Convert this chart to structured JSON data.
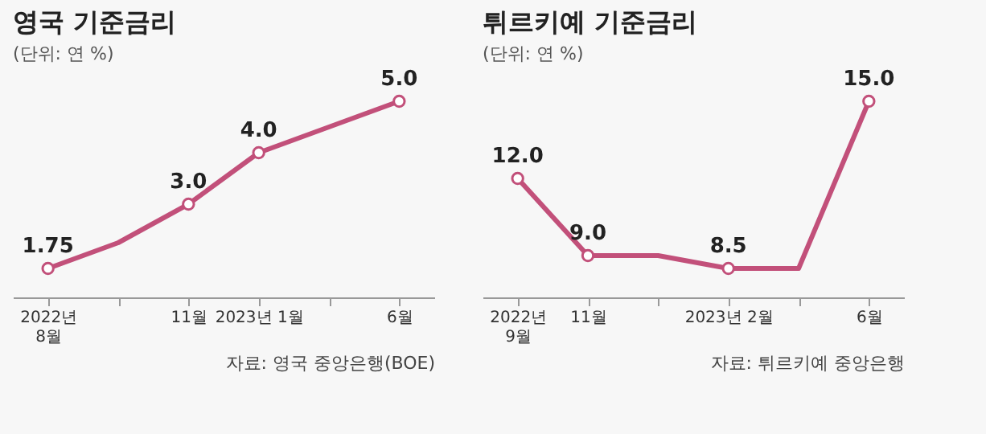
{
  "chart_data": [
    {
      "type": "line",
      "title": "영국 기준금리",
      "subtitle": "(단위: 연 %)",
      "categories": [
        "2022년\n8월",
        null,
        "11월",
        "2023년 1월",
        null,
        "6월"
      ],
      "values": [
        1.75,
        2.25,
        3.0,
        4.0,
        4.5,
        5.0
      ],
      "value_labels": [
        "1.75",
        null,
        "3.0",
        "4.0",
        null,
        "5.0"
      ],
      "color": "#c2507a",
      "marker": "circle",
      "annotations": [
        "자료: 영국 중앙은행(BOE)"
      ]
    },
    {
      "type": "line",
      "title": "튀르키예 기준금리",
      "subtitle": "(단위: 연 %)",
      "categories": [
        "2022년\n9월",
        "11월",
        null,
        "2023년 2월",
        null,
        "6월"
      ],
      "values": [
        12.0,
        9.0,
        9.0,
        8.5,
        8.5,
        15.0
      ],
      "value_labels": [
        "12.0",
        "9.0",
        null,
        "8.5",
        null,
        "15.0"
      ],
      "color": "#c2507a",
      "marker": "circle",
      "annotations": [
        "자료: 튀르키예 중앙은행"
      ]
    }
  ]
}
